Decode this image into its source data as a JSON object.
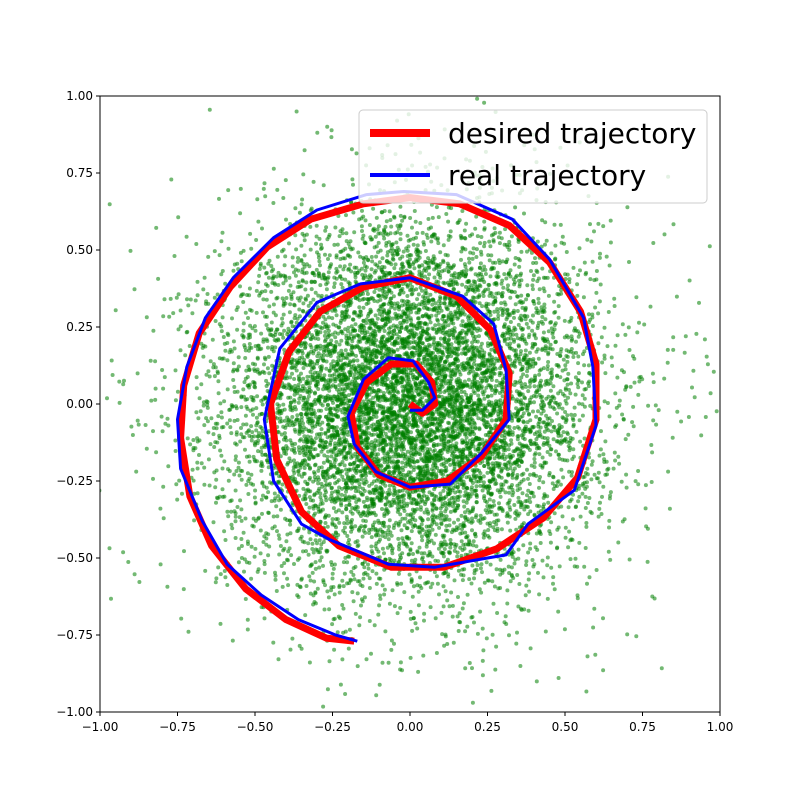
{
  "chart_data": {
    "type": "scatter",
    "title": "",
    "xlabel": "",
    "ylabel": "",
    "xlim": [
      -1.0,
      1.0
    ],
    "ylim": [
      -1.0,
      1.0
    ],
    "xticks": [
      "−1.00",
      "−0.75",
      "−0.50",
      "−0.25",
      "0.00",
      "0.25",
      "0.50",
      "0.75",
      "1.00"
    ],
    "yticks": [
      "−1.00",
      "−0.75",
      "−0.50",
      "−0.25",
      "0.00",
      "0.25",
      "0.50",
      "0.75",
      "1.00"
    ],
    "grid": false,
    "legend_position": "top-right",
    "scatter": {
      "color": "#008000",
      "count": 9000,
      "distribution": "approximately Gaussian cloud centered at (0.00, 0.00), std ≈ 0.30, extending to ±1.0"
    },
    "series": [
      {
        "name": "desired trajectory",
        "color": "#ff0000",
        "points": [
          [
            0.0,
            0.0
          ],
          [
            0.04,
            -0.03
          ],
          [
            0.08,
            0.0
          ],
          [
            0.07,
            0.07
          ],
          [
            0.02,
            0.13
          ],
          [
            -0.06,
            0.13
          ],
          [
            -0.14,
            0.07
          ],
          [
            -0.19,
            -0.03
          ],
          [
            -0.17,
            -0.14
          ],
          [
            -0.1,
            -0.23
          ],
          [
            0.0,
            -0.27
          ],
          [
            0.12,
            -0.25
          ],
          [
            0.23,
            -0.17
          ],
          [
            0.31,
            -0.05
          ],
          [
            0.32,
            0.1
          ],
          [
            0.26,
            0.24
          ],
          [
            0.15,
            0.35
          ],
          [
            0.0,
            0.41
          ],
          [
            -0.15,
            0.38
          ],
          [
            -0.29,
            0.3
          ],
          [
            -0.39,
            0.17
          ],
          [
            -0.45,
            0.0
          ],
          [
            -0.43,
            -0.18
          ],
          [
            -0.35,
            -0.35
          ],
          [
            -0.23,
            -0.46
          ],
          [
            -0.06,
            -0.53
          ],
          [
            0.11,
            -0.53
          ],
          [
            0.28,
            -0.47
          ],
          [
            0.43,
            -0.37
          ],
          [
            0.54,
            -0.24
          ],
          [
            0.6,
            -0.05
          ],
          [
            0.6,
            0.13
          ],
          [
            0.55,
            0.3
          ],
          [
            0.45,
            0.46
          ],
          [
            0.32,
            0.58
          ],
          [
            0.16,
            0.65
          ],
          [
            0.0,
            0.67
          ],
          [
            -0.15,
            0.65
          ],
          [
            -0.32,
            0.6
          ],
          [
            -0.46,
            0.51
          ],
          [
            -0.58,
            0.38
          ],
          [
            -0.68,
            0.23
          ],
          [
            -0.73,
            0.06
          ],
          [
            -0.74,
            -0.11
          ],
          [
            -0.71,
            -0.3
          ],
          [
            -0.64,
            -0.46
          ],
          [
            -0.53,
            -0.6
          ],
          [
            -0.4,
            -0.7
          ],
          [
            -0.27,
            -0.76
          ],
          [
            -0.18,
            -0.77
          ]
        ]
      },
      {
        "name": "real trajectory",
        "color": "#0000ff",
        "points": [
          [
            0.0,
            -0.02
          ],
          [
            0.04,
            -0.02
          ],
          [
            0.08,
            0.02
          ],
          [
            0.06,
            0.07
          ],
          [
            0.01,
            0.14
          ],
          [
            -0.07,
            0.15
          ],
          [
            -0.15,
            0.08
          ],
          [
            -0.2,
            -0.04
          ],
          [
            -0.18,
            -0.13
          ],
          [
            -0.11,
            -0.22
          ],
          [
            0.0,
            -0.27
          ],
          [
            0.13,
            -0.26
          ],
          [
            0.23,
            -0.16
          ],
          [
            0.32,
            -0.05
          ],
          [
            0.31,
            0.11
          ],
          [
            0.27,
            0.26
          ],
          [
            0.17,
            0.35
          ],
          [
            0.0,
            0.41
          ],
          [
            -0.16,
            0.39
          ],
          [
            -0.3,
            0.33
          ],
          [
            -0.42,
            0.18
          ],
          [
            -0.47,
            -0.05
          ],
          [
            -0.44,
            -0.25
          ],
          [
            -0.35,
            -0.39
          ],
          [
            -0.26,
            -0.44
          ],
          [
            -0.07,
            -0.52
          ],
          [
            0.08,
            -0.53
          ],
          [
            0.25,
            -0.5
          ],
          [
            0.31,
            -0.49
          ],
          [
            0.38,
            -0.39
          ],
          [
            0.53,
            -0.28
          ],
          [
            0.6,
            -0.07
          ],
          [
            0.59,
            0.12
          ],
          [
            0.56,
            0.28
          ],
          [
            0.45,
            0.47
          ],
          [
            0.33,
            0.6
          ],
          [
            0.15,
            0.68
          ],
          [
            -0.02,
            0.69
          ],
          [
            -0.14,
            0.68
          ],
          [
            -0.3,
            0.63
          ],
          [
            -0.44,
            0.54
          ],
          [
            -0.57,
            0.41
          ],
          [
            -0.66,
            0.28
          ],
          [
            -0.72,
            0.12
          ],
          [
            -0.75,
            -0.05
          ],
          [
            -0.74,
            -0.21
          ],
          [
            -0.67,
            -0.38
          ],
          [
            -0.59,
            -0.52
          ],
          [
            -0.48,
            -0.62
          ],
          [
            -0.36,
            -0.7
          ],
          [
            -0.24,
            -0.75
          ],
          [
            -0.17,
            -0.77
          ]
        ]
      }
    ]
  }
}
